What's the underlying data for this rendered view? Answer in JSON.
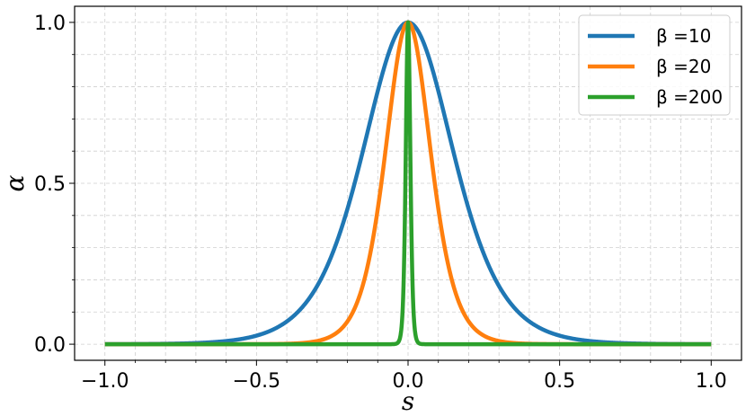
{
  "chart_data": {
    "type": "line",
    "title": "",
    "xlabel": "s",
    "ylabel": "α",
    "xlim": [
      -1.1,
      1.1
    ],
    "ylim": [
      -0.05,
      1.05
    ],
    "x_ticks": [
      -1.0,
      -0.5,
      0.0,
      0.5,
      1.0
    ],
    "x_tick_labels": [
      "−1.0",
      "−0.5",
      "0.0",
      "0.5",
      "1.0"
    ],
    "y_ticks": [
      0.0,
      0.5,
      1.0
    ],
    "y_tick_labels": [
      "0.0",
      "0.5",
      "1.0"
    ],
    "grid": true,
    "legend_position": "top-right",
    "series": [
      {
        "name": "β =10",
        "color": "#1f77b4",
        "beta": 10,
        "x": [
          -1.0,
          -0.75,
          -0.5,
          -0.4,
          -0.3,
          -0.2,
          -0.15,
          -0.1,
          -0.05,
          0.0,
          0.05,
          0.1,
          0.15,
          0.2,
          0.3,
          0.4,
          0.5,
          0.75,
          1.0
        ],
        "y": [
          0.0002,
          0.0022,
          0.027,
          0.071,
          0.181,
          0.42,
          0.635,
          0.85,
          0.967,
          1.0,
          0.967,
          0.85,
          0.635,
          0.42,
          0.181,
          0.071,
          0.027,
          0.0022,
          0.0002
        ]
      },
      {
        "name": "β =20",
        "color": "#ff7f0e",
        "beta": 20,
        "x": [
          -1.0,
          -0.5,
          -0.3,
          -0.2,
          -0.15,
          -0.1,
          -0.05,
          0.0,
          0.05,
          0.1,
          0.15,
          0.2,
          0.3,
          0.5,
          1.0
        ],
        "y": [
          0.0,
          0.0002,
          0.01,
          0.071,
          0.181,
          0.42,
          0.85,
          1.0,
          0.85,
          0.42,
          0.181,
          0.071,
          0.01,
          0.0002,
          0.0
        ],
        "_omit": true
      },
      {
        "name": "β =200",
        "color": "#2ca02c",
        "beta": 200,
        "x": [
          -1.0,
          -0.02,
          -0.015,
          -0.01,
          -0.005,
          0.0,
          0.005,
          0.01,
          0.015,
          0.02,
          1.0
        ],
        "y": [
          0.0,
          0.071,
          0.181,
          0.42,
          0.85,
          1.0,
          0.85,
          0.42,
          0.181,
          0.071,
          0.0
        ],
        "_omit": true
      }
    ]
  }
}
